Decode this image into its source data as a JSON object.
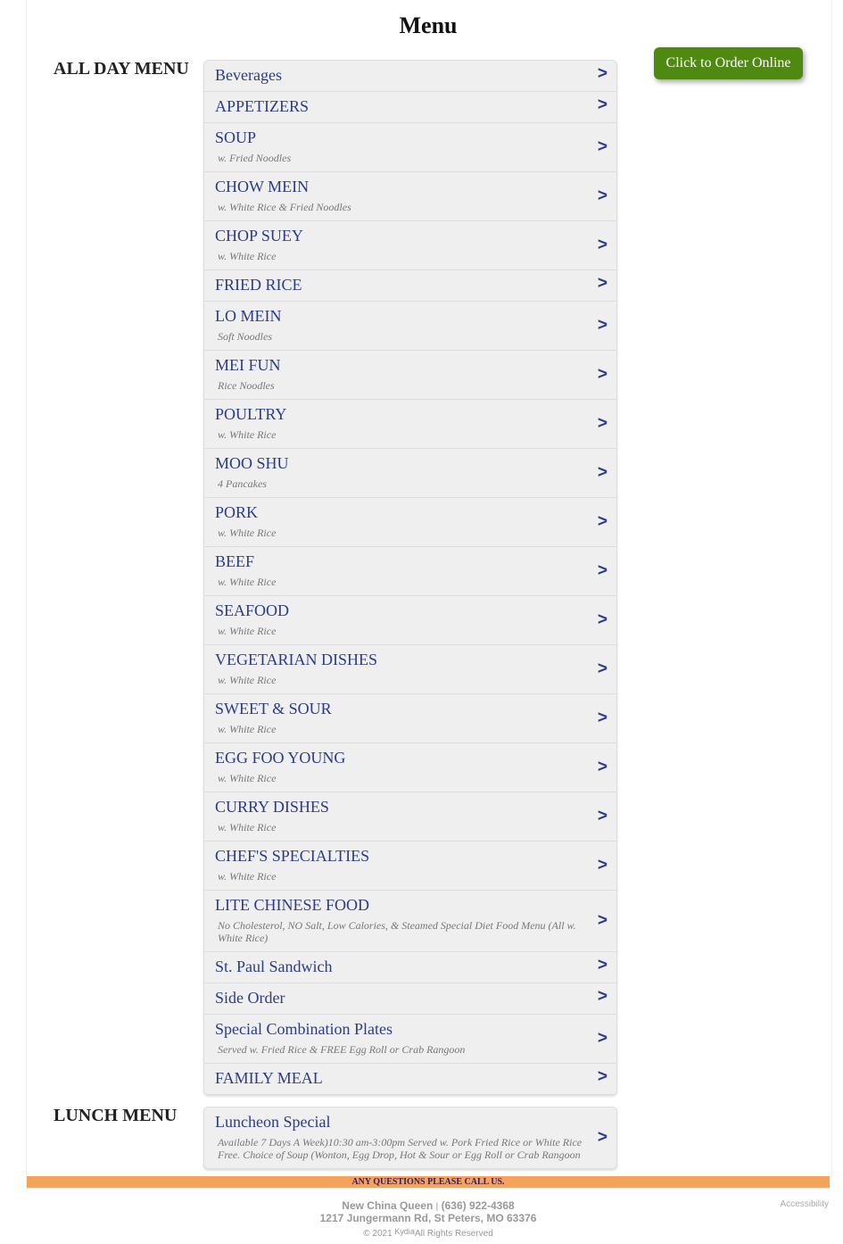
{
  "page_title": "Menu",
  "order_button": "Click to Order Online",
  "sections": [
    {
      "label": "ALL DAY MENU",
      "items": [
        {
          "title": "Beverages",
          "sub": ""
        },
        {
          "title": "APPETIZERS",
          "sub": ""
        },
        {
          "title": "SOUP",
          "sub": "w. Fried Noodles"
        },
        {
          "title": "CHOW MEIN",
          "sub": "w. White Rice & Fried Noodles"
        },
        {
          "title": "CHOP SUEY",
          "sub": "w. White Rice"
        },
        {
          "title": "FRIED RICE",
          "sub": ""
        },
        {
          "title": "LO MEIN",
          "sub": "Soft Noodles"
        },
        {
          "title": "MEI FUN",
          "sub": "Rice Noodles"
        },
        {
          "title": "POULTRY",
          "sub": "w. White Rice"
        },
        {
          "title": "MOO SHU",
          "sub": "4 Pancakes"
        },
        {
          "title": "PORK",
          "sub": "w. White Rice"
        },
        {
          "title": "BEEF",
          "sub": "w. White Rice"
        },
        {
          "title": "SEAFOOD",
          "sub": "w. White Rice"
        },
        {
          "title": "VEGETARIAN DISHES",
          "sub": "w. White Rice"
        },
        {
          "title": "SWEET & SOUR",
          "sub": "w. White Rice"
        },
        {
          "title": "EGG FOO YOUNG",
          "sub": "w. White Rice"
        },
        {
          "title": "CURRY DISHES",
          "sub": "w. White Rice"
        },
        {
          "title": "CHEF'S SPECIALTIES",
          "sub": "w. White Rice"
        },
        {
          "title": "LITE CHINESE FOOD",
          "sub": "No Cholesterol, NO Salt, Low Calories, & Steamed Special Diet Food Menu (All w. White Rice)"
        },
        {
          "title": "St. Paul Sandwich",
          "sub": ""
        },
        {
          "title": "Side Order",
          "sub": ""
        },
        {
          "title": "Special Combination Plates",
          "sub": "Served w. Fried Rice & FREE Egg Roll or Crab Rangoon"
        },
        {
          "title": "FAMILY MEAL",
          "sub": ""
        }
      ]
    },
    {
      "label": "LUNCH MENU",
      "items": [
        {
          "title": "Luncheon Special",
          "sub": "Available 7 Days A Week)10:30 am-3:00pm Served w. Pork Fried Rice or White Rice Free. Choice of Soup (Wonton, Egg Drop, Hot & Sour or Egg Roll or Crab Rangoon"
        }
      ]
    }
  ],
  "chevron": ">",
  "banner": "ANY QUESTIONS PLEASE CALL US.",
  "footer": {
    "name": "New China Queen",
    "sep": "|",
    "phone": "(636) 922-4368",
    "address": "1217 Jungermann Rd, St Peters, MO 63376",
    "copyright": "© 2021",
    "brand": "Kydia",
    "rights": "All Rights Reserved",
    "accessibility": "Accessibility"
  },
  "colors": {
    "link": "#2d3b8c",
    "order_button": "#4f8a10",
    "banner": "#f5a25c"
  }
}
